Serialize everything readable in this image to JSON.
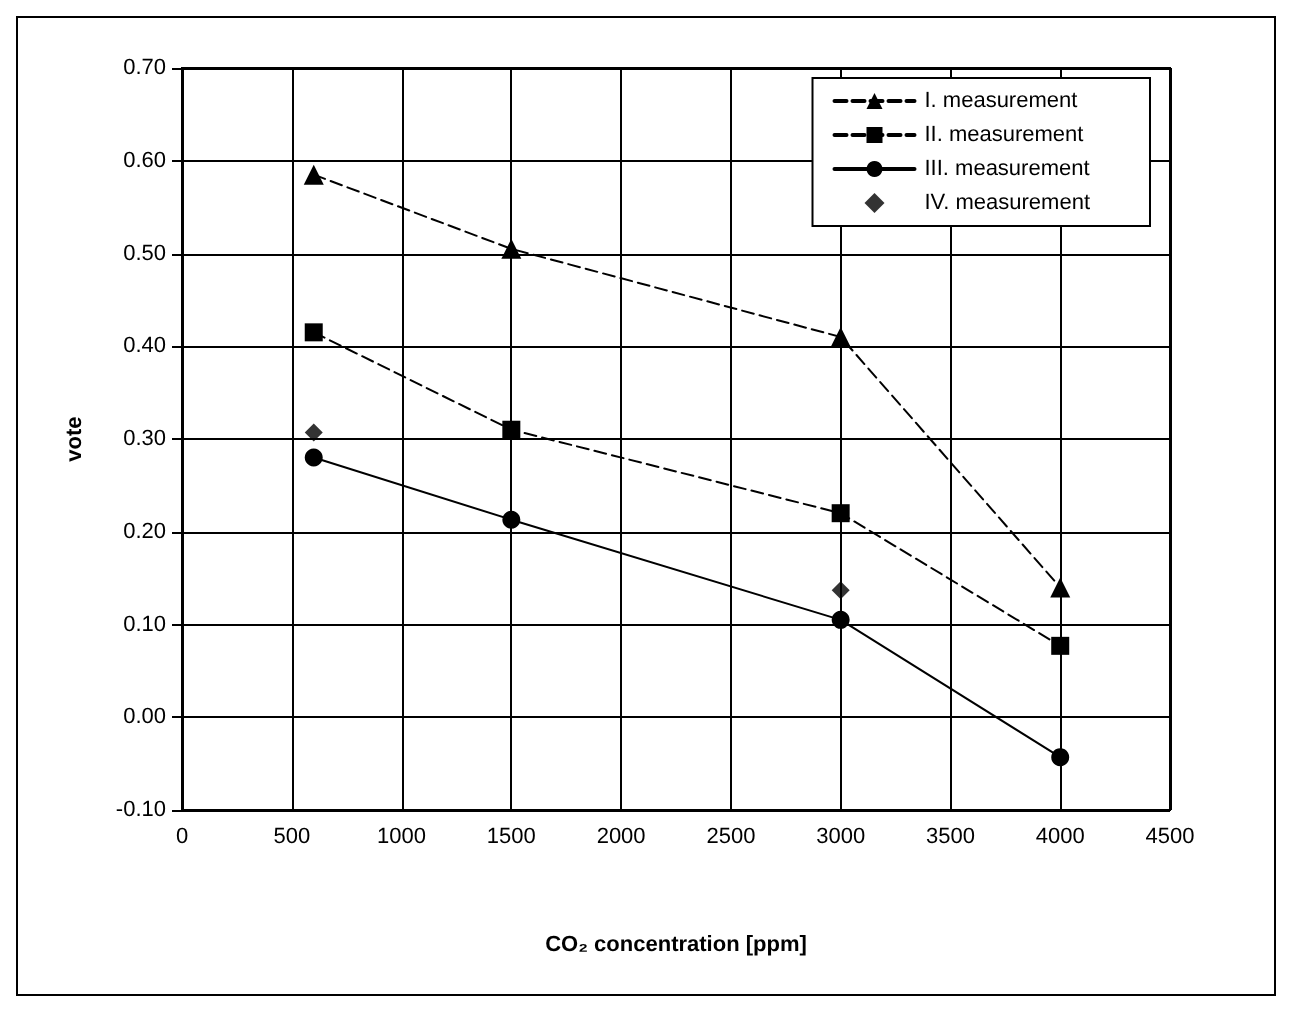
{
  "chart_data": {
    "type": "line",
    "xlabel": "CO₂ concentration [ppm]",
    "ylabel": "vote",
    "xlim": [
      0,
      4500
    ],
    "xticks": [
      0,
      500,
      1000,
      1500,
      2000,
      2500,
      3000,
      3500,
      4000,
      4500
    ],
    "ylim": [
      -0.1,
      0.7
    ],
    "yticks": [
      {
        "value": -0.1,
        "label": "-0.10"
      },
      {
        "value": 0,
        "label": "0.00"
      },
      {
        "value": 0.1,
        "label": "0.10"
      },
      {
        "value": 0.2,
        "label": "0.20"
      },
      {
        "value": 0.3,
        "label": "0.30"
      },
      {
        "value": 0.4,
        "label": "0.40"
      },
      {
        "value": 0.5,
        "label": "0.50"
      },
      {
        "value": 0.6,
        "label": "0.60"
      },
      {
        "value": 0.7,
        "label": "0.70"
      }
    ],
    "grid": true,
    "legend": "top right",
    "x": [
      600,
      1500,
      3000,
      4000
    ],
    "series": [
      {
        "name": "I. measurement",
        "color": "#000000",
        "marker": "triangle",
        "line_style": "dashed",
        "values": [
          0.585,
          0.505,
          0.41,
          0.14
        ]
      },
      {
        "name": "II. measurement",
        "color": "#000000",
        "marker": "square",
        "line_style": "dashed",
        "values": [
          0.415,
          0.31,
          0.22,
          0.077
        ]
      },
      {
        "name": "III. measurement",
        "color": "#000000",
        "marker": "circle",
        "line_style": "solid",
        "values": [
          0.28,
          0.213,
          0.105,
          -0.043
        ]
      },
      {
        "name": "IV. measurement",
        "type": "scatter",
        "color": "#000000",
        "marker": "diamond",
        "x": [
          600,
          3000
        ],
        "values": [
          0.307,
          0.137
        ]
      }
    ]
  }
}
